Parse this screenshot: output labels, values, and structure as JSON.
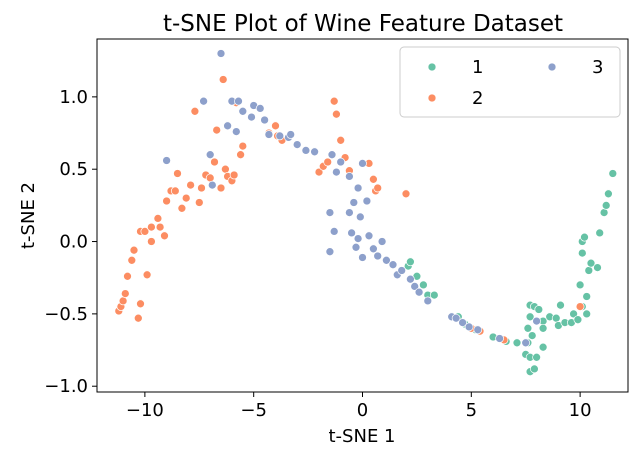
{
  "chart_data": {
    "type": "scatter",
    "title": "t-SNE Plot of Wine Feature Dataset",
    "xlabel": "t-SNE 1",
    "ylabel": "t-SNE 2",
    "xlim": [
      -12.2,
      12.2
    ],
    "ylim": [
      -1.04,
      1.4
    ],
    "xticks": [
      -10,
      -5,
      0,
      5,
      10
    ],
    "xtick_labels": [
      "−10",
      "−5",
      "0",
      "5",
      "10"
    ],
    "yticks": [
      -1.0,
      -0.5,
      0.0,
      0.5,
      1.0
    ],
    "ytick_labels": [
      "−1.0",
      "−0.5",
      "0.0",
      "0.5",
      "1.0"
    ],
    "grid": false,
    "legend_position": "top-right",
    "legend_columns": 2,
    "series": [
      {
        "name": "1",
        "color": "#66c2a5",
        "points": [
          [
            2.1,
            -0.17
          ],
          [
            2.2,
            -0.14
          ],
          [
            2.5,
            -0.24
          ],
          [
            2.8,
            -0.3
          ],
          [
            3.0,
            -0.37
          ],
          [
            3.3,
            -0.37
          ],
          [
            4.4,
            -0.52
          ],
          [
            4.7,
            -0.57
          ],
          [
            5.2,
            -0.61
          ],
          [
            6.0,
            -0.66
          ],
          [
            6.6,
            -0.69
          ],
          [
            7.1,
            -0.7
          ],
          [
            7.6,
            -0.7
          ],
          [
            7.5,
            -0.78
          ],
          [
            7.7,
            -0.9
          ],
          [
            7.9,
            -0.88
          ],
          [
            7.7,
            -0.8
          ],
          [
            8.0,
            -0.8
          ],
          [
            7.8,
            -0.65
          ],
          [
            7.6,
            -0.6
          ],
          [
            7.7,
            -0.52
          ],
          [
            7.7,
            -0.44
          ],
          [
            7.9,
            -0.45
          ],
          [
            8.1,
            -0.47
          ],
          [
            8.3,
            -0.55
          ],
          [
            8.3,
            -0.6
          ],
          [
            8.3,
            -0.73
          ],
          [
            8.6,
            -0.52
          ],
          [
            8.9,
            -0.53
          ],
          [
            9.1,
            -0.44
          ],
          [
            9.0,
            -0.58
          ],
          [
            9.3,
            -0.56
          ],
          [
            9.6,
            -0.56
          ],
          [
            9.7,
            -0.5
          ],
          [
            9.9,
            -0.54
          ],
          [
            10.0,
            -0.3
          ],
          [
            10.1,
            -0.08
          ],
          [
            10.1,
            0.0
          ],
          [
            10.2,
            0.03
          ],
          [
            10.4,
            -0.2
          ],
          [
            10.5,
            -0.15
          ],
          [
            10.3,
            -0.38
          ],
          [
            10.8,
            -0.18
          ],
          [
            10.9,
            0.06
          ],
          [
            11.1,
            0.2
          ],
          [
            11.2,
            0.25
          ],
          [
            11.3,
            0.33
          ],
          [
            11.5,
            0.47
          ],
          [
            10.1,
            -0.45
          ],
          [
            10.3,
            -0.5
          ]
        ]
      },
      {
        "name": "2",
        "color": "#fc8d62",
        "points": [
          [
            -11.2,
            -0.48
          ],
          [
            -11.1,
            -0.45
          ],
          [
            -11.0,
            -0.41
          ],
          [
            -10.9,
            -0.36
          ],
          [
            -10.8,
            -0.24
          ],
          [
            -10.6,
            -0.13
          ],
          [
            -10.5,
            -0.06
          ],
          [
            -10.3,
            -0.53
          ],
          [
            -10.2,
            -0.43
          ],
          [
            -10.2,
            0.07
          ],
          [
            -10.0,
            0.07
          ],
          [
            -9.9,
            -0.23
          ],
          [
            -9.7,
            0.1
          ],
          [
            -9.7,
            0.0
          ],
          [
            -9.4,
            0.16
          ],
          [
            -9.3,
            0.1
          ],
          [
            -9.1,
            0.04
          ],
          [
            -9.0,
            0.28
          ],
          [
            -8.8,
            0.35
          ],
          [
            -8.6,
            0.35
          ],
          [
            -8.5,
            0.47
          ],
          [
            -8.3,
            0.23
          ],
          [
            -8.1,
            0.3
          ],
          [
            -7.9,
            0.39
          ],
          [
            -7.7,
            0.9
          ],
          [
            -7.5,
            0.27
          ],
          [
            -7.4,
            0.37
          ],
          [
            -7.2,
            0.46
          ],
          [
            -7.0,
            0.44
          ],
          [
            -6.8,
            0.55
          ],
          [
            -6.7,
            0.77
          ],
          [
            -6.5,
            0.37
          ],
          [
            -6.4,
            1.12
          ],
          [
            -6.3,
            0.5
          ],
          [
            -6.2,
            0.45
          ],
          [
            -6.0,
            0.42
          ],
          [
            -5.9,
            0.46
          ],
          [
            -5.8,
            0.96
          ],
          [
            -5.6,
            0.6
          ],
          [
            -5.5,
            0.66
          ],
          [
            -4.3,
            0.75
          ],
          [
            -4.0,
            0.8
          ],
          [
            -3.9,
            0.73
          ],
          [
            -3.7,
            0.7
          ],
          [
            -2.0,
            0.48
          ],
          [
            -1.8,
            0.52
          ],
          [
            -1.6,
            0.55
          ],
          [
            -1.3,
            0.97
          ],
          [
            -1.2,
            0.88
          ],
          [
            -1.0,
            0.7
          ],
          [
            -0.8,
            0.58
          ],
          [
            -0.6,
            0.49
          ],
          [
            0.3,
            0.54
          ],
          [
            0.5,
            0.43
          ],
          [
            0.6,
            0.35
          ],
          [
            0.7,
            0.37
          ],
          [
            2.0,
            0.33
          ],
          [
            5.0,
            -0.6
          ],
          [
            5.4,
            -0.62
          ],
          [
            6.5,
            -0.68
          ],
          [
            10.0,
            -0.45
          ]
        ]
      },
      {
        "name": "3",
        "color": "#8da0cb",
        "points": [
          [
            -9.0,
            0.56
          ],
          [
            -7.3,
            0.97
          ],
          [
            -6.5,
            1.3
          ],
          [
            -7.0,
            0.6
          ],
          [
            -6.9,
            0.39
          ],
          [
            -6.2,
            0.8
          ],
          [
            -6.0,
            0.97
          ],
          [
            -5.7,
            0.97
          ],
          [
            -5.8,
            0.76
          ],
          [
            -5.5,
            0.9
          ],
          [
            -5.1,
            0.86
          ],
          [
            -5.0,
            0.94
          ],
          [
            -4.7,
            0.92
          ],
          [
            -4.5,
            0.84
          ],
          [
            -4.3,
            0.74
          ],
          [
            -3.8,
            0.73
          ],
          [
            -3.4,
            0.72
          ],
          [
            -3.0,
            0.67
          ],
          [
            -2.6,
            0.63
          ],
          [
            -2.2,
            0.62
          ],
          [
            -1.4,
            0.6
          ],
          [
            -1.2,
            0.48
          ],
          [
            -1.0,
            0.55
          ],
          [
            -0.6,
            0.45
          ],
          [
            -0.4,
            0.27
          ],
          [
            -0.2,
            0.37
          ],
          [
            -1.5,
            0.2
          ],
          [
            -1.3,
            0.07
          ],
          [
            -1.5,
            -0.07
          ],
          [
            -0.6,
            0.2
          ],
          [
            -0.5,
            0.06
          ],
          [
            -0.2,
            0.02
          ],
          [
            -0.3,
            -0.04
          ],
          [
            0.0,
            -0.11
          ],
          [
            0.3,
            0.04
          ],
          [
            0.5,
            -0.05
          ],
          [
            0.7,
            -0.1
          ],
          [
            0.9,
            0.0
          ],
          [
            1.1,
            -0.13
          ],
          [
            1.4,
            -0.16
          ],
          [
            1.6,
            -0.23
          ],
          [
            1.8,
            -0.2
          ],
          [
            2.2,
            -0.26
          ],
          [
            2.4,
            -0.31
          ],
          [
            2.6,
            -0.35
          ],
          [
            3.0,
            -0.41
          ],
          [
            4.1,
            -0.52
          ],
          [
            4.3,
            -0.53
          ],
          [
            4.6,
            -0.56
          ],
          [
            4.9,
            -0.59
          ],
          [
            5.3,
            -0.61
          ],
          [
            6.3,
            -0.67
          ],
          [
            7.5,
            -0.7
          ],
          [
            8.0,
            -0.55
          ],
          [
            0.0,
            0.54
          ],
          [
            -3.3,
            0.74
          ],
          [
            0.2,
            0.28
          ],
          [
            -0.1,
            0.17
          ]
        ]
      }
    ]
  }
}
